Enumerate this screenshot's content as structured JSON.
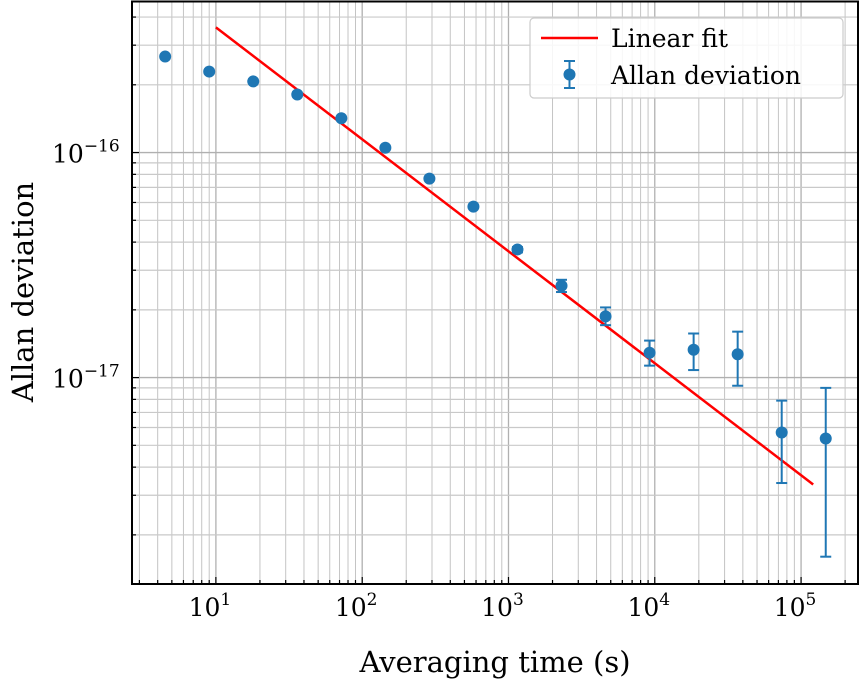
{
  "chart_data": {
    "type": "scatter",
    "title": "",
    "xlabel": "Averaging time (s)",
    "ylabel": "Allan deviation",
    "xscale": "log",
    "yscale": "log",
    "xlim": [
      2.67,
      245000
    ],
    "ylim": [
      1.21e-18,
      4.69e-16
    ],
    "grid": "major and minor",
    "legend_position": "top-right",
    "x_tick_labels": [
      {
        "value": 10,
        "base": "10",
        "exp": "1"
      },
      {
        "value": 100,
        "base": "10",
        "exp": "2"
      },
      {
        "value": 1000,
        "base": "10",
        "exp": "3"
      },
      {
        "value": 10000,
        "base": "10",
        "exp": "4"
      },
      {
        "value": 100000,
        "base": "10",
        "exp": "5"
      }
    ],
    "y_tick_labels": [
      {
        "value": 1e-16,
        "base": "10",
        "exp": "−16"
      },
      {
        "value": 1e-17,
        "base": "10",
        "exp": "−17"
      }
    ],
    "series": [
      {
        "name": "Allan deviation",
        "kind": "errorbar",
        "color": "#1f77b4",
        "x": [
          4.5,
          9,
          18,
          36,
          72,
          144,
          288,
          576,
          1152,
          2304,
          4608,
          9216,
          18432,
          36864,
          73728,
          147456
        ],
        "y": [
          2.67e-16,
          2.29e-16,
          2.07e-16,
          1.81e-16,
          1.42e-16,
          1.05e-16,
          7.66e-17,
          5.75e-17,
          3.71e-17,
          2.56e-17,
          1.87e-17,
          1.29e-17,
          1.33e-17,
          1.27e-17,
          5.7e-18,
          5.36e-18
        ],
        "y_low": [
          null,
          null,
          null,
          null,
          null,
          null,
          null,
          null,
          3.6e-17,
          2.4e-17,
          1.71e-17,
          1.13e-17,
          1.08e-17,
          9.2e-18,
          3.4e-18,
          1.6e-18
        ],
        "y_high": [
          null,
          null,
          null,
          null,
          null,
          null,
          null,
          null,
          3.8e-17,
          2.72e-17,
          2.05e-17,
          1.46e-17,
          1.57e-17,
          1.6e-17,
          7.9e-18,
          9e-18
        ]
      },
      {
        "name": "Linear fit",
        "kind": "line",
        "color": "#ff0000",
        "x": [
          10,
          121000
        ],
        "y": [
          3.6e-16,
          3.35e-18
        ]
      }
    ]
  }
}
